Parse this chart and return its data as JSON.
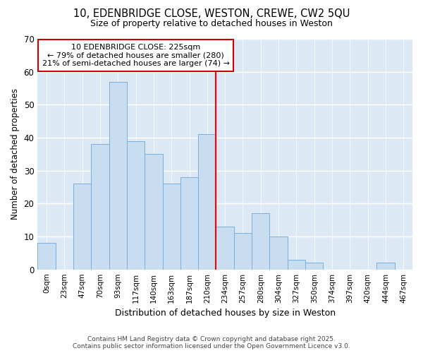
{
  "title_line1": "10, EDENBRIDGE CLOSE, WESTON, CREWE, CW2 5QU",
  "title_line2": "Size of property relative to detached houses in Weston",
  "xlabel": "Distribution of detached houses by size in Weston",
  "ylabel": "Number of detached properties",
  "bar_labels": [
    "0sqm",
    "23sqm",
    "47sqm",
    "70sqm",
    "93sqm",
    "117sqm",
    "140sqm",
    "163sqm",
    "187sqm",
    "210sqm",
    "234sqm",
    "257sqm",
    "280sqm",
    "304sqm",
    "327sqm",
    "350sqm",
    "374sqm",
    "397sqm",
    "420sqm",
    "444sqm",
    "467sqm"
  ],
  "bar_values": [
    8,
    0,
    26,
    38,
    57,
    39,
    35,
    26,
    28,
    41,
    13,
    11,
    17,
    10,
    3,
    2,
    0,
    0,
    0,
    2,
    0
  ],
  "bar_color": "#c9ddf0",
  "bar_edgecolor": "#7aaedb",
  "ylim": [
    0,
    70
  ],
  "yticks": [
    0,
    10,
    20,
    30,
    40,
    50,
    60,
    70
  ],
  "property_line_x": 10.0,
  "annotation_title": "10 EDENBRIDGE CLOSE: 225sqm",
  "annotation_line1": "← 79% of detached houses are smaller (280)",
  "annotation_line2": "21% of semi-detached houses are larger (74) →",
  "annotation_box_color": "#ffffff",
  "annotation_box_edgecolor": "#cc0000",
  "footer_line1": "Contains HM Land Registry data © Crown copyright and database right 2025.",
  "footer_line2": "Contains public sector information licensed under the Open Government Licence v3.0.",
  "fig_bg_color": "#ffffff",
  "plot_bg_color": "#dce9f5"
}
